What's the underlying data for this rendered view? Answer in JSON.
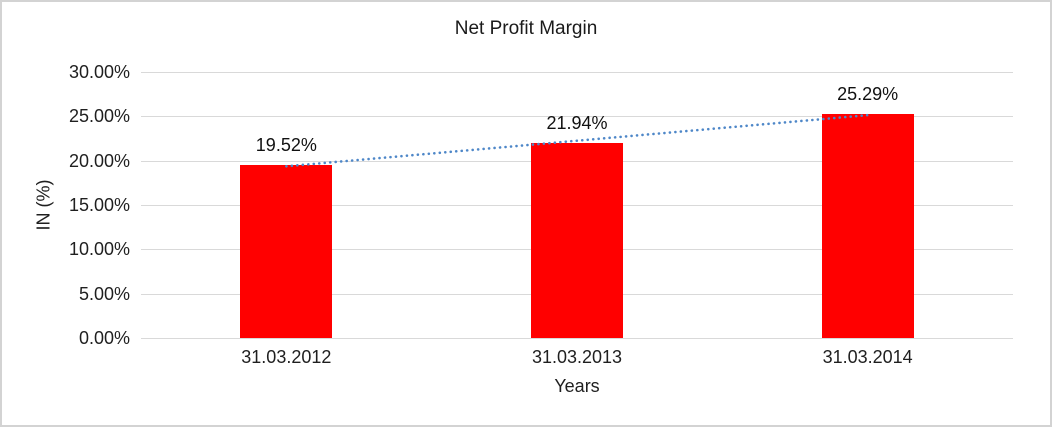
{
  "chart_data": {
    "type": "bar",
    "title": "Net Profit Margin",
    "xlabel": "Years",
    "ylabel": "IN (%)",
    "categories": [
      "31.03.2012",
      "31.03.2013",
      "31.03.2014"
    ],
    "values": [
      19.52,
      21.94,
      25.29
    ],
    "data_labels": [
      "19.52%",
      "21.94%",
      "25.29%"
    ],
    "ylim": [
      0,
      30
    ],
    "ytick_step": 5,
    "ytick_labels": [
      "0.00%",
      "5.00%",
      "10.00%",
      "15.00%",
      "20.00%",
      "25.00%",
      "30.00%"
    ],
    "grid": true,
    "legend_position": "none",
    "colors": {
      "bar": "#ff0000",
      "gridline": "#d9d9d9",
      "trendline": "#4e87c8",
      "frame": "#d3d3d3"
    },
    "trendline": {
      "fit": "linear",
      "style": "dotted"
    }
  }
}
